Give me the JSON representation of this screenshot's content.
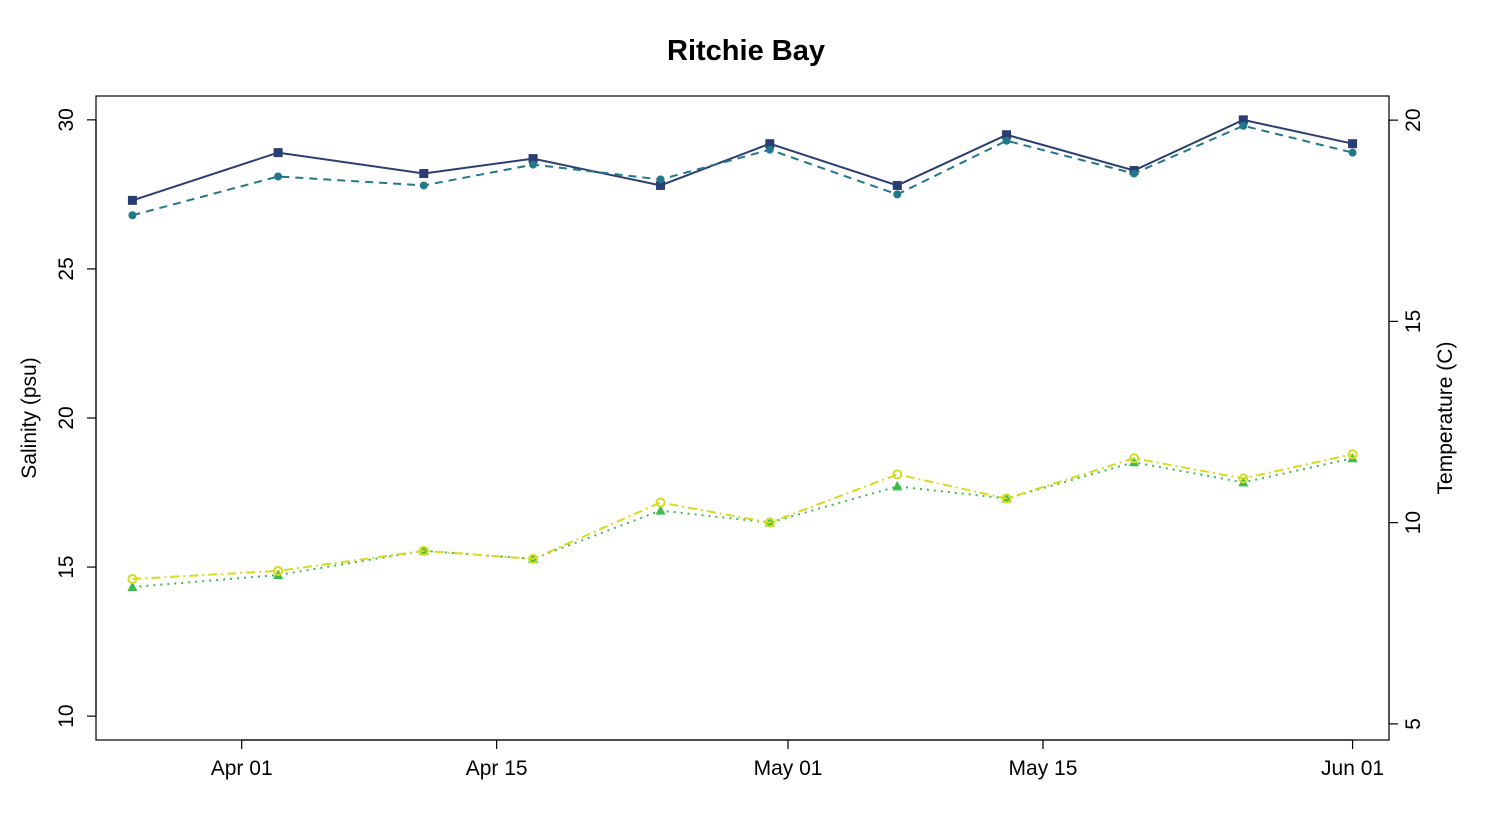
{
  "chart_data": {
    "type": "line",
    "title": "Ritchie Bay",
    "xlabel": "",
    "ylabel": "Salinity (psu)",
    "y2label": "Temperature (C)",
    "grid": false,
    "legend": "none",
    "x_dates": [
      "2025-03-26",
      "2025-04-03",
      "2025-04-11",
      "2025-04-17",
      "2025-04-24",
      "2025-04-30",
      "2025-05-07",
      "2025-05-13",
      "2025-05-20",
      "2025-05-26",
      "2025-06-01"
    ],
    "xlim": [
      "2025-03-24",
      "2025-06-03"
    ],
    "xticks": [
      {
        "date": "2025-04-01",
        "label": "Apr 01"
      },
      {
        "date": "2025-04-15",
        "label": "Apr 15"
      },
      {
        "date": "2025-05-01",
        "label": "May 01"
      },
      {
        "date": "2025-05-15",
        "label": "May 15"
      },
      {
        "date": "2025-06-01",
        "label": "Jun 01"
      }
    ],
    "ylim": [
      9.2,
      30.8
    ],
    "yticks": [
      10,
      15,
      20,
      25,
      30
    ],
    "y2lim": [
      4.6,
      20.6
    ],
    "y2ticks": [
      5,
      10,
      15,
      20
    ],
    "series": [
      {
        "axis": "left",
        "color": "#2b3e73",
        "dash": "",
        "marker": "square",
        "values": [
          27.3,
          28.9,
          28.2,
          28.7,
          27.8,
          29.2,
          27.8,
          29.5,
          28.3,
          30.0,
          29.2
        ]
      },
      {
        "axis": "left",
        "color": "#21788a",
        "dash": "8,6",
        "marker": "circle",
        "values": [
          26.8,
          28.1,
          27.8,
          28.5,
          28.0,
          29.0,
          27.5,
          29.3,
          28.2,
          29.8,
          28.9
        ]
      },
      {
        "axis": "right",
        "color": "#3cbc4c",
        "dash": "2,5",
        "marker": "triangle",
        "values": [
          8.4,
          8.7,
          9.3,
          9.1,
          10.3,
          10.0,
          10.9,
          10.6,
          11.5,
          11.0,
          11.6
        ]
      },
      {
        "axis": "right",
        "color": "#d3dc1f",
        "dash": "9,4,2,4",
        "marker": "circle-open",
        "values": [
          8.6,
          8.8,
          9.3,
          9.1,
          10.5,
          10.0,
          11.2,
          10.6,
          11.6,
          11.1,
          11.7
        ]
      }
    ]
  }
}
